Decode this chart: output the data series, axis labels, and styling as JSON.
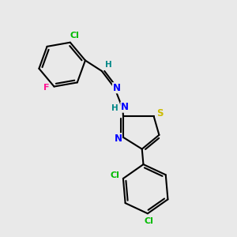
{
  "bg_color": "#e9e9e9",
  "bond_color": "#000000",
  "atom_colors": {
    "Cl": "#00bb00",
    "F": "#ff1493",
    "N": "#0000ff",
    "S": "#ccbb00",
    "H": "#008888",
    "C": "#000000"
  }
}
